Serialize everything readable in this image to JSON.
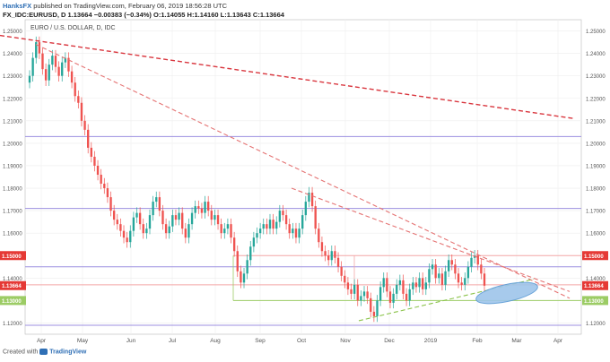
{
  "header": {
    "line1_author": "HanksFX",
    "line1_rest": " published on TradingView.com, February 06, 2019 18:56:28 UTC",
    "line2": "FX_IDC:EURUSD, D  1.13664  −0.00383 (−0.34%)  O:1.14055  H:1.14160  L:1.13643  C:1.13664"
  },
  "footer": {
    "created_with": "Created with",
    "brand": "TradingView"
  },
  "chart_data": {
    "type": "candlestick",
    "title": "EURO / U.S. DOLLAR, D, IDC",
    "x_labels": [
      "Apr",
      "May",
      "Jun",
      "Jul",
      "Aug",
      "Sep",
      "Oct",
      "Nov",
      "Dec",
      "2019",
      "Feb",
      "Mar",
      "Apr"
    ],
    "ylim": [
      1.115,
      1.255
    ],
    "y_ticks": [
      "1.25000",
      "1.24000",
      "1.23000",
      "1.22000",
      "1.21000",
      "1.20000",
      "1.19000",
      "1.18000",
      "1.17000",
      "1.16000",
      "1.14000",
      "1.12000"
    ],
    "price_labels": {
      "upper_resistance": "1.15000",
      "current": "1.13664",
      "support": "1.13000"
    },
    "horizontal_levels": [
      1.203,
      1.171,
      1.15,
      1.145,
      1.137,
      1.13,
      1.119
    ],
    "trendlines": [
      {
        "from": [
          0,
          1.248
        ],
        "to": [
          640,
          1.211
        ],
        "style": "dashed",
        "color": "#d9363e"
      },
      {
        "from": [
          40,
          1.244
        ],
        "to": [
          635,
          1.131
        ],
        "style": "dashed",
        "color": "#e57373"
      },
      {
        "from": [
          325,
          1.18
        ],
        "to": [
          635,
          1.134
        ],
        "style": "dashed",
        "color": "#e57373"
      },
      {
        "from": [
          400,
          1.121
        ],
        "to": [
          595,
          1.1395
        ],
        "style": "dashed",
        "color": "#8bc34a"
      }
    ],
    "closes": [
      1.23,
      1.238,
      1.245,
      1.24,
      1.233,
      1.228,
      1.235,
      1.239,
      1.234,
      1.23,
      1.236,
      1.238,
      1.232,
      1.227,
      1.221,
      1.218,
      1.21,
      1.206,
      1.198,
      1.194,
      1.19,
      1.186,
      1.182,
      1.18,
      1.176,
      1.17,
      1.166,
      1.164,
      1.161,
      1.158,
      1.156,
      1.161,
      1.167,
      1.169,
      1.164,
      1.16,
      1.162,
      1.168,
      1.174,
      1.176,
      1.17,
      1.164,
      1.16,
      1.163,
      1.168,
      1.166,
      1.169,
      1.162,
      1.158,
      1.164,
      1.169,
      1.172,
      1.171,
      1.169,
      1.174,
      1.17,
      1.166,
      1.168,
      1.164,
      1.16,
      1.162,
      1.164,
      1.158,
      1.152,
      1.143,
      1.138,
      1.142,
      1.148,
      1.154,
      1.158,
      1.16,
      1.162,
      1.164,
      1.162,
      1.166,
      1.162,
      1.165,
      1.17,
      1.168,
      1.164,
      1.16,
      1.162,
      1.158,
      1.162,
      1.168,
      1.174,
      1.178,
      1.172,
      1.162,
      1.156,
      1.152,
      1.15,
      1.148,
      1.152,
      1.149,
      1.145,
      1.141,
      1.138,
      1.135,
      1.133,
      1.137,
      1.13,
      1.132,
      1.134,
      1.131,
      1.125,
      1.123,
      1.13,
      1.136,
      1.14,
      1.134,
      1.129,
      1.133,
      1.137,
      1.139,
      1.133,
      1.13,
      1.135,
      1.138,
      1.136,
      1.14,
      1.135,
      1.138,
      1.144,
      1.146,
      1.14,
      1.142,
      1.137,
      1.143,
      1.148,
      1.146,
      1.142,
      1.138,
      1.137,
      1.14,
      1.145,
      1.149,
      1.15,
      1.146,
      1.142,
      1.1366
    ],
    "annotation": {
      "type": "ellipse",
      "label": "",
      "color": "#5b9bd5"
    }
  },
  "colors": {
    "up": "#26a69a",
    "down": "#ef5350",
    "level": "#9c8fe0",
    "resistance": "#f3a6a6",
    "support": "#9ccc65",
    "price_tag": "#e53935",
    "grid": "#eeeeee"
  }
}
